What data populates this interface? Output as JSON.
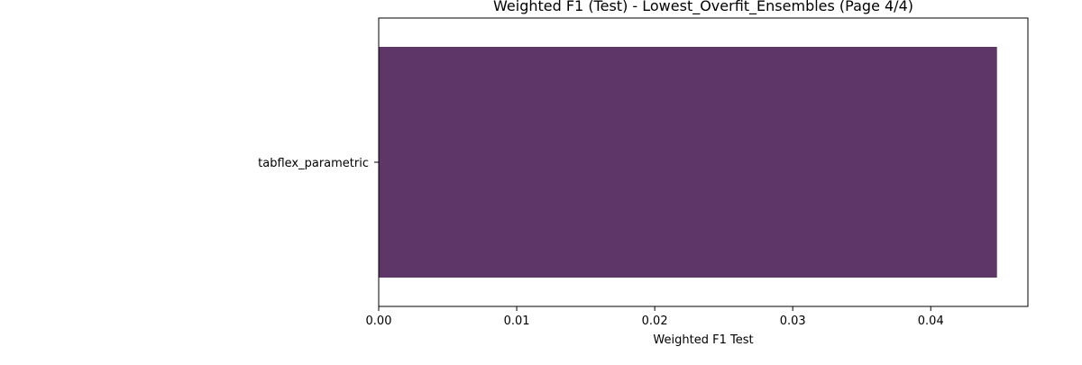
{
  "chart_data": {
    "type": "bar",
    "orientation": "horizontal",
    "title": "Weighted F1 (Test) - Lowest_Overfit_Ensembles (Page 4/4)",
    "xlabel": "Weighted F1 Test",
    "ylabel": "",
    "categories": [
      "tabflex_parametric"
    ],
    "values": [
      0.0448
    ],
    "xlim": [
      0,
      0.04704
    ],
    "xticks": [
      0.0,
      0.01,
      0.02,
      0.03,
      0.04
    ],
    "xtick_labels": [
      "0.00",
      "0.01",
      "0.02",
      "0.03",
      "0.04"
    ],
    "bar_colors": [
      "#5e3668"
    ],
    "grid": false,
    "legend": false
  }
}
